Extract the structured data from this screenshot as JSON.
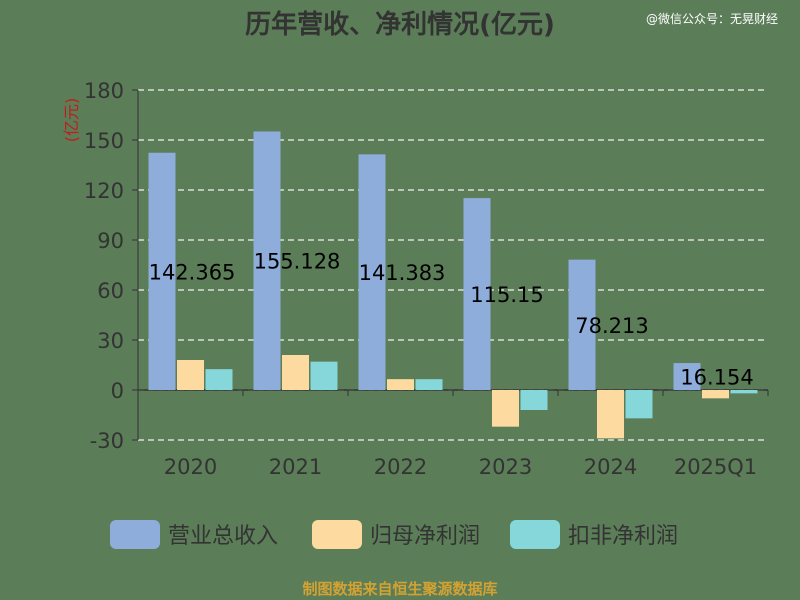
{
  "header": {
    "title": "历年营收、净利情况(亿元)",
    "watermark": "@微信公众号：无晃财经"
  },
  "footer": {
    "source": "制图数据来自恒生聚源数据库"
  },
  "colors": {
    "background": "#5b7d58",
    "revenue": "#8eaddb",
    "net_profit": "#fddba0",
    "deducted_profit": "#86d7d9",
    "ylabel": "#c21c1c",
    "source": "#d3a232"
  },
  "chart_data": {
    "type": "bar",
    "title": "历年营收、净利情况(亿元)",
    "ylabel": "(亿元)",
    "xlabel": "",
    "categories": [
      "2020",
      "2021",
      "2022",
      "2023",
      "2024",
      "2025Q1"
    ],
    "ylim": [
      -30,
      180
    ],
    "yticks": [
      -30,
      0,
      30,
      60,
      90,
      120,
      150,
      180
    ],
    "grid": true,
    "legend_position": "bottom",
    "series": [
      {
        "name": "营业总收入",
        "values": [
          142.365,
          155.128,
          141.383,
          115.15,
          78.213,
          16.154
        ]
      },
      {
        "name": "归母净利润",
        "values": [
          18,
          21,
          6.5,
          -22,
          -29,
          -5
        ]
      },
      {
        "name": "扣非净利润",
        "values": [
          12.5,
          17,
          6.5,
          -12,
          -17,
          -2
        ]
      }
    ],
    "data_labels": [
      "142.365",
      "155.128",
      "141.383",
      "115.15",
      "78.213",
      "16.154"
    ]
  }
}
